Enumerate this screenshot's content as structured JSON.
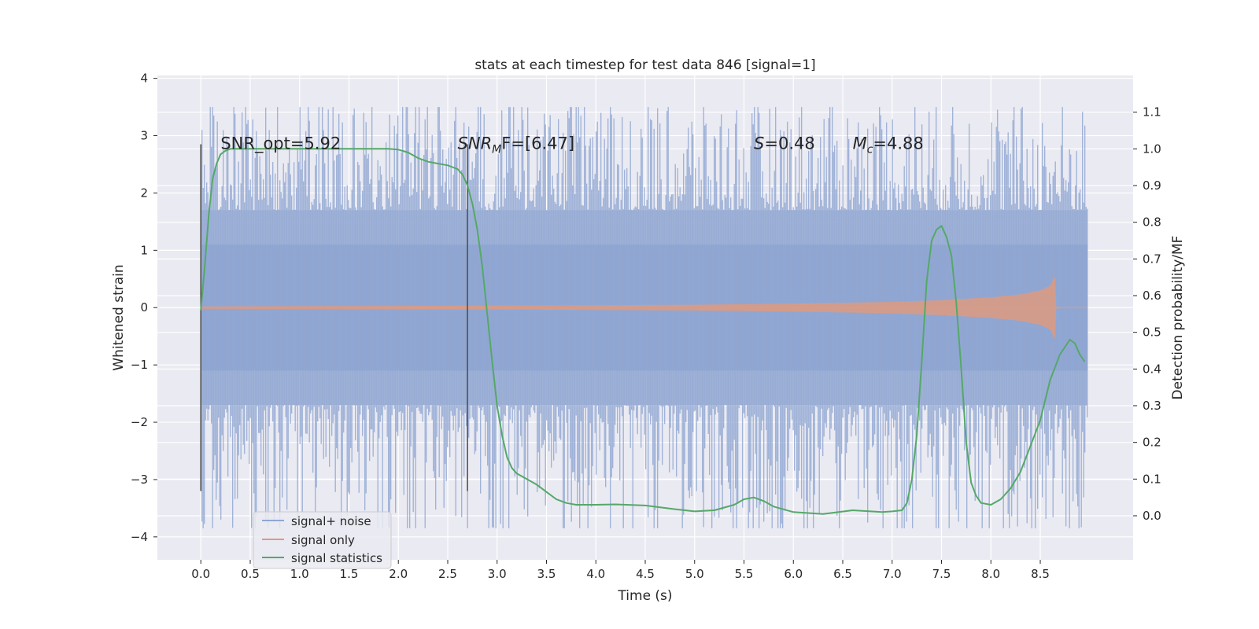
{
  "chart_data": {
    "type": "line",
    "title": "stats at each timestep for test data 846 [signal=1]",
    "xlabel": "Time (s)",
    "ylabel_left": "Whitened strain",
    "ylabel_right": "Detection probability/MF",
    "xlim": [
      -0.44,
      9.44
    ],
    "ylim_left": [
      -4.4,
      4.05
    ],
    "ylim_right": [
      -0.12,
      1.2
    ],
    "xticks": [
      0.0,
      0.5,
      1.0,
      1.5,
      2.0,
      2.5,
      3.0,
      3.5,
      4.0,
      4.5,
      5.0,
      5.5,
      6.0,
      6.5,
      7.0,
      7.5,
      8.0,
      8.5
    ],
    "xtick_labels": [
      "0.0",
      "0.5",
      "1.0",
      "1.5",
      "2.0",
      "2.5",
      "3.0",
      "3.5",
      "4.0",
      "4.5",
      "5.0",
      "5.5",
      "6.0",
      "6.5",
      "7.0",
      "7.5",
      "8.0",
      "8.5"
    ],
    "yticks_left": [
      -4,
      -3,
      -2,
      -1,
      0,
      1,
      2,
      3,
      4
    ],
    "ytick_labels_left": [
      "−4",
      "−3",
      "−2",
      "−1",
      "0",
      "1",
      "2",
      "3",
      "4"
    ],
    "yticks_right": [
      0.0,
      0.1,
      0.2,
      0.3,
      0.4,
      0.5,
      0.6,
      0.7,
      0.8,
      0.9,
      1.0,
      1.1
    ],
    "ytick_labels_right": [
      "0.0",
      "0.1",
      "0.2",
      "0.3",
      "0.4",
      "0.5",
      "0.6",
      "0.7",
      "0.8",
      "0.9",
      "1.0",
      "1.1"
    ],
    "series": [
      {
        "name": "signal+ noise",
        "color": "#8fa6d1",
        "axis": "left",
        "kind": "noise",
        "x_range": [
          0.0,
          8.98
        ],
        "typical_band": [
          -1.1,
          1.1
        ],
        "dense_band": [
          -1.7,
          1.7
        ],
        "peak_range": [
          -3.85,
          3.5
        ]
      },
      {
        "name": "signal only",
        "color": "#dd9a80",
        "axis": "left",
        "kind": "chirp",
        "envelope_x": [
          0.0,
          1.0,
          2.0,
          3.0,
          4.0,
          5.0,
          6.0,
          7.0,
          7.5,
          8.0,
          8.3,
          8.5,
          8.6,
          8.65,
          8.66,
          8.7,
          8.98
        ],
        "envelope_y": [
          0.02,
          0.025,
          0.03,
          0.035,
          0.04,
          0.05,
          0.07,
          0.1,
          0.13,
          0.18,
          0.23,
          0.3,
          0.38,
          0.55,
          0.02,
          0.01,
          0.0
        ]
      },
      {
        "name": "signal statistics",
        "color": "#55a868",
        "axis": "right",
        "x": [
          0.0,
          0.04,
          0.08,
          0.12,
          0.16,
          0.2,
          0.25,
          0.3,
          0.4,
          0.6,
          0.8,
          1.0,
          1.5,
          1.9,
          2.0,
          2.1,
          2.2,
          2.3,
          2.4,
          2.5,
          2.6,
          2.65,
          2.7,
          2.75,
          2.8,
          2.85,
          2.9,
          2.95,
          3.0,
          3.05,
          3.1,
          3.15,
          3.2,
          3.3,
          3.4,
          3.5,
          3.6,
          3.7,
          3.8,
          3.9,
          4.0,
          4.2,
          4.5,
          4.8,
          5.0,
          5.2,
          5.4,
          5.5,
          5.6,
          5.7,
          5.8,
          6.0,
          6.3,
          6.6,
          6.9,
          7.0,
          7.1,
          7.15,
          7.2,
          7.25,
          7.3,
          7.35,
          7.4,
          7.45,
          7.5,
          7.55,
          7.6,
          7.65,
          7.7,
          7.75,
          7.8,
          7.85,
          7.9,
          8.0,
          8.1,
          8.2,
          8.3,
          8.4,
          8.5,
          8.6,
          8.7,
          8.8,
          8.85,
          8.9,
          8.95
        ],
        "y": [
          0.56,
          0.68,
          0.82,
          0.92,
          0.96,
          0.985,
          0.995,
          1.0,
          1.0,
          1.0,
          1.0,
          1.0,
          1.0,
          1.0,
          0.998,
          0.99,
          0.975,
          0.965,
          0.96,
          0.955,
          0.945,
          0.93,
          0.9,
          0.85,
          0.78,
          0.68,
          0.55,
          0.42,
          0.3,
          0.22,
          0.16,
          0.13,
          0.115,
          0.1,
          0.085,
          0.065,
          0.045,
          0.035,
          0.03,
          0.03,
          0.03,
          0.031,
          0.028,
          0.018,
          0.012,
          0.015,
          0.03,
          0.045,
          0.05,
          0.04,
          0.025,
          0.01,
          0.005,
          0.015,
          0.01,
          0.012,
          0.015,
          0.035,
          0.1,
          0.22,
          0.42,
          0.64,
          0.75,
          0.78,
          0.79,
          0.76,
          0.71,
          0.58,
          0.4,
          0.2,
          0.09,
          0.055,
          0.035,
          0.03,
          0.045,
          0.075,
          0.12,
          0.19,
          0.26,
          0.37,
          0.44,
          0.48,
          0.47,
          0.44,
          0.42
        ]
      }
    ],
    "vlines": [
      {
        "x": 0.0,
        "ymin": -3.2,
        "ymax": 2.85
      },
      {
        "x": 2.7,
        "ymin": -3.2,
        "ymax": 2.85
      }
    ],
    "annotations": [
      {
        "text": "SNR_opt=5.92",
        "x": 0.2,
        "y": 2.85
      },
      {
        "text_main": "SNR",
        "text_sub": "M",
        "text_tail": "F=[6.47]",
        "x": 2.6,
        "y": 2.85
      },
      {
        "text_main": "S",
        "text_sub": "",
        "text_tail": "=0.48",
        "x": 5.6,
        "y": 2.85
      },
      {
        "text_main": "M",
        "text_sub": "c",
        "text_tail": "=4.88",
        "x": 6.6,
        "y": 2.85
      }
    ],
    "legend": {
      "placement": "lower-left"
    },
    "grid": true
  }
}
